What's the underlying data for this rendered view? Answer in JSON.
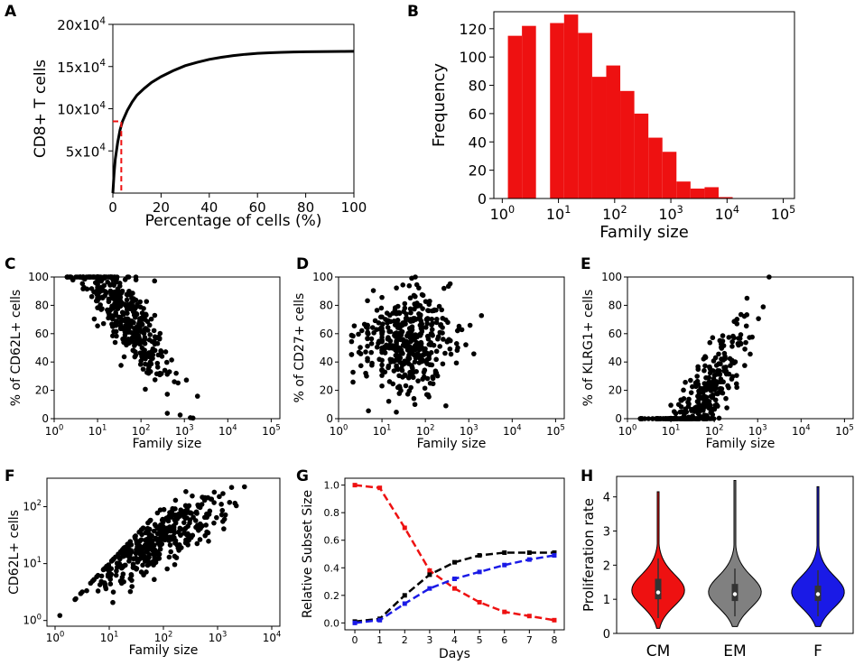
{
  "panel_letters": [
    "A",
    "B",
    "C",
    "D",
    "E",
    "F",
    "G",
    "H"
  ],
  "colors": {
    "red": "#ee1111",
    "black": "#000000",
    "blue": "#1a1ae6",
    "gray": "#808080"
  },
  "chart_data": [
    {
      "id": "A",
      "type": "line",
      "title": "",
      "xlabel": "Percentage of cells (%)",
      "ylabel": "CD8+ T cells",
      "xlim": [
        0,
        100
      ],
      "ylim": [
        0,
        200000
      ],
      "xticks": [
        0,
        20,
        40,
        60,
        80,
        100
      ],
      "yticks": [
        50000,
        100000,
        150000,
        200000
      ],
      "ytick_labels": [
        {
          "base": "5x10",
          "exp": "4"
        },
        {
          "base": "10x10",
          "exp": "4"
        },
        {
          "base": "15x10",
          "exp": "4"
        },
        {
          "base": "20x10",
          "exp": "4"
        }
      ],
      "series": [
        {
          "name": "cumulative",
          "color": "#000000",
          "x": [
            0,
            0.5,
            1,
            2,
            3,
            4,
            6,
            8,
            10,
            13,
            16,
            20,
            25,
            30,
            35,
            40,
            45,
            50,
            55,
            60,
            65,
            70,
            75,
            80,
            85,
            90,
            95,
            100
          ],
          "y": [
            0,
            23000,
            40000,
            60000,
            75000,
            85000,
            98000,
            108000,
            116000,
            124000,
            131000,
            138000,
            145000,
            151000,
            155000,
            158500,
            161000,
            163000,
            164500,
            165600,
            166300,
            166800,
            167200,
            167500,
            167700,
            167800,
            167900,
            168000
          ]
        }
      ],
      "annotation": {
        "x": 3.5,
        "y": 85000,
        "color": "#ee1111",
        "style": "dashed"
      }
    },
    {
      "id": "B",
      "type": "bar",
      "title": "",
      "xlabel": "Family size",
      "ylabel": "Frequency",
      "xscale": "log",
      "xlim_log10": [
        -0.15,
        5.2
      ],
      "ylim": [
        0,
        132
      ],
      "xticks": [
        {
          "base": "10",
          "exp": "0"
        },
        {
          "base": "10",
          "exp": "1"
        },
        {
          "base": "10",
          "exp": "2"
        },
        {
          "base": "10",
          "exp": "3"
        },
        {
          "base": "10",
          "exp": "4"
        },
        {
          "base": "10",
          "exp": "5"
        }
      ],
      "yticks": [
        0,
        20,
        40,
        60,
        80,
        100,
        120
      ],
      "bin_width_log10": 0.25,
      "bins_log10_left": [
        0.1,
        0.35,
        0.85,
        1.1,
        1.35,
        1.6,
        1.85,
        2.1,
        2.35,
        2.6,
        2.85,
        3.1,
        3.35,
        3.6,
        3.85
      ],
      "values": [
        115,
        122,
        124,
        130,
        117,
        86,
        94,
        76,
        60,
        43,
        33,
        12,
        7,
        8,
        1
      ],
      "color": "#ee1111"
    },
    {
      "id": "C",
      "type": "scatter",
      "xlabel": "Family size",
      "ylabel": "% of CD62L+ cells",
      "xscale": "log",
      "ylim": [
        0,
        100
      ],
      "yticks": [
        0,
        20,
        40,
        60,
        80,
        100
      ],
      "xticks": [
        {
          "base": "10",
          "exp": "0"
        },
        {
          "base": "10",
          "exp": "1"
        },
        {
          "base": "10",
          "exp": "2"
        },
        {
          "base": "10",
          "exp": "3"
        },
        {
          "base": "10",
          "exp": "4"
        },
        {
          "base": "10",
          "exp": "5"
        }
      ],
      "generator": {
        "n": 430,
        "seed": 11,
        "x_log_range": [
          0.2,
          4.1
        ],
        "trend": "decreasing"
      }
    },
    {
      "id": "D",
      "type": "scatter",
      "xlabel": "Family size",
      "ylabel": "% of CD27+ cells",
      "xscale": "log",
      "ylim": [
        0,
        100
      ],
      "yticks": [
        0,
        20,
        40,
        60,
        80,
        100
      ],
      "xticks": [
        {
          "base": "10",
          "exp": "0"
        },
        {
          "base": "10",
          "exp": "1"
        },
        {
          "base": "10",
          "exp": "2"
        },
        {
          "base": "10",
          "exp": "3"
        },
        {
          "base": "10",
          "exp": "4"
        },
        {
          "base": "10",
          "exp": "5"
        }
      ],
      "generator": {
        "n": 430,
        "seed": 23,
        "x_log_range": [
          0.2,
          3.5
        ],
        "trend": "flat"
      }
    },
    {
      "id": "E",
      "type": "scatter",
      "xlabel": "Family size",
      "ylabel": "% of KLRG1+ cells",
      "xscale": "log",
      "ylim": [
        0,
        100
      ],
      "yticks": [
        0,
        20,
        40,
        60,
        80,
        100
      ],
      "xticks": [
        {
          "base": "10",
          "exp": "0"
        },
        {
          "base": "10",
          "exp": "1"
        },
        {
          "base": "10",
          "exp": "2"
        },
        {
          "base": "10",
          "exp": "3"
        },
        {
          "base": "10",
          "exp": "4"
        },
        {
          "base": "10",
          "exp": "5"
        }
      ],
      "generator": {
        "n": 430,
        "seed": 37,
        "x_log_range": [
          0.3,
          3.9
        ],
        "trend": "increasing"
      }
    },
    {
      "id": "F",
      "type": "scatter",
      "xlabel": "Family size",
      "ylabel": "CD62L+ cells",
      "xscale": "log",
      "yscale": "log",
      "xticks": [
        {
          "base": "10",
          "exp": "0"
        },
        {
          "base": "10",
          "exp": "1"
        },
        {
          "base": "10",
          "exp": "2"
        },
        {
          "base": "10",
          "exp": "3"
        },
        {
          "base": "10",
          "exp": "4"
        }
      ],
      "yticks": [
        {
          "base": "10",
          "exp": "0"
        },
        {
          "base": "10",
          "exp": "1"
        },
        {
          "base": "10",
          "exp": "2"
        }
      ],
      "generator": {
        "n": 420,
        "seed": 51,
        "x_log_range": [
          0.0,
          3.9
        ],
        "trend": "loglinear"
      }
    },
    {
      "id": "G",
      "type": "line",
      "xlabel": "Days",
      "ylabel": "Relative Subset Size",
      "xlim": [
        0,
        8
      ],
      "ylim": [
        0,
        1.05
      ],
      "xticks": [
        0,
        1,
        2,
        3,
        4,
        5,
        6,
        7,
        8
      ],
      "yticks": [
        0.0,
        0.2,
        0.4,
        0.6,
        0.8,
        1.0
      ],
      "x": [
        0,
        1,
        2,
        3,
        4,
        5,
        6,
        7,
        8
      ],
      "series": [
        {
          "name": "red",
          "color": "#ee1111",
          "values": [
            1.0,
            0.98,
            0.69,
            0.38,
            0.25,
            0.15,
            0.08,
            0.05,
            0.02
          ]
        },
        {
          "name": "black",
          "color": "#000000",
          "values": [
            0.01,
            0.03,
            0.2,
            0.35,
            0.44,
            0.49,
            0.51,
            0.51,
            0.51
          ]
        },
        {
          "name": "blue",
          "color": "#1a1ae6",
          "values": [
            0.0,
            0.02,
            0.14,
            0.25,
            0.32,
            0.37,
            0.42,
            0.46,
            0.49
          ]
        }
      ]
    },
    {
      "id": "H",
      "type": "violin",
      "xlabel": "",
      "ylabel": "Proliferation rate",
      "ylim": [
        0,
        4.6
      ],
      "yticks": [
        0,
        1,
        2,
        3,
        4
      ],
      "categories": [
        "CM",
        "EM",
        "F"
      ],
      "colors": [
        "#ee1111",
        "#808080",
        "#1a1ae6"
      ],
      "max": [
        4.15,
        4.48,
        4.3
      ],
      "min": [
        0.15,
        0.2,
        0.2
      ],
      "q1": [
        1.0,
        0.95,
        0.95
      ],
      "median": [
        1.2,
        1.15,
        1.15
      ],
      "q3": [
        1.6,
        1.45,
        1.4
      ],
      "whisker": [
        [
          0.45,
          2.2
        ],
        [
          0.5,
          1.9
        ],
        [
          0.5,
          1.85
        ]
      ]
    }
  ]
}
